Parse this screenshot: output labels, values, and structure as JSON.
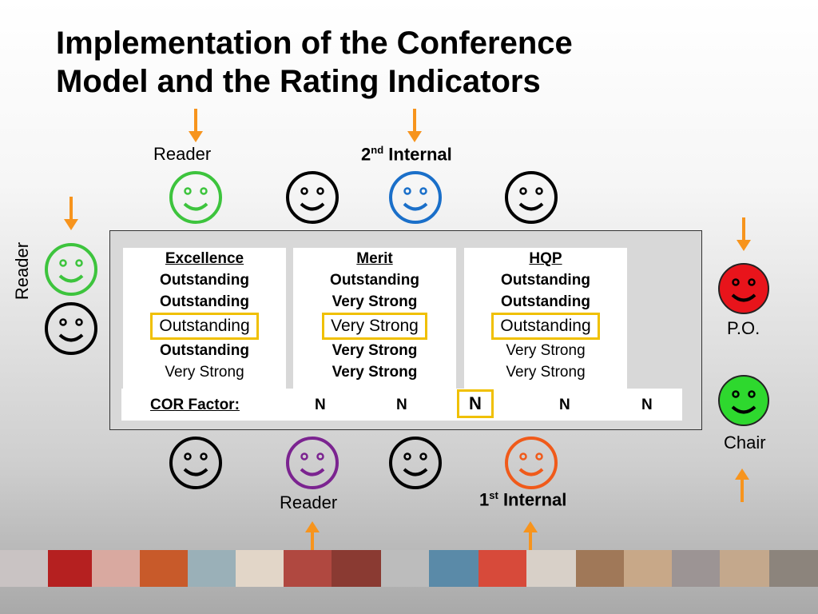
{
  "slide": {
    "title_line1": "Implementation of the Conference",
    "title_line2": "Model and the Rating Indicators"
  },
  "labels": {
    "reader_top": "Reader",
    "second_internal_num": "2",
    "second_internal_sup": "nd",
    "second_internal_word": "Internal",
    "reader_left": "Reader",
    "po": "P.O.",
    "chair": "Chair",
    "reader_bottom": "Reader",
    "first_internal_num": "1",
    "first_internal_sup": "st",
    "first_internal_word": "Internal"
  },
  "columns": [
    {
      "header": "Excellence",
      "ratings": [
        "Outstanding",
        "Outstanding",
        "Outstanding",
        "Outstanding",
        "Very Strong"
      ],
      "highlighted_index": 2
    },
    {
      "header": "Merit",
      "ratings": [
        "Outstanding",
        "Very Strong",
        "Very Strong",
        "Very Strong",
        "Very Strong"
      ],
      "highlighted_index": 2
    },
    {
      "header": "HQP",
      "ratings": [
        "Outstanding",
        "Outstanding",
        "Outstanding",
        "Very Strong",
        "Very Strong"
      ],
      "highlighted_index": 2
    }
  ],
  "cor": {
    "label": "COR Factor:",
    "values": [
      "N",
      "N",
      "N",
      "N",
      "N"
    ],
    "highlighted_index": 2
  },
  "colors": {
    "arrow": "#f7941d",
    "highlight": "#f0c000",
    "face_green": "#3dc43d",
    "face_blue": "#1a6fc9",
    "face_black": "#000000",
    "face_purple": "#7b2390",
    "face_orange": "#f05a1a",
    "face_red_fill": "#e8141b",
    "face_green_fill": "#2ed82e"
  }
}
